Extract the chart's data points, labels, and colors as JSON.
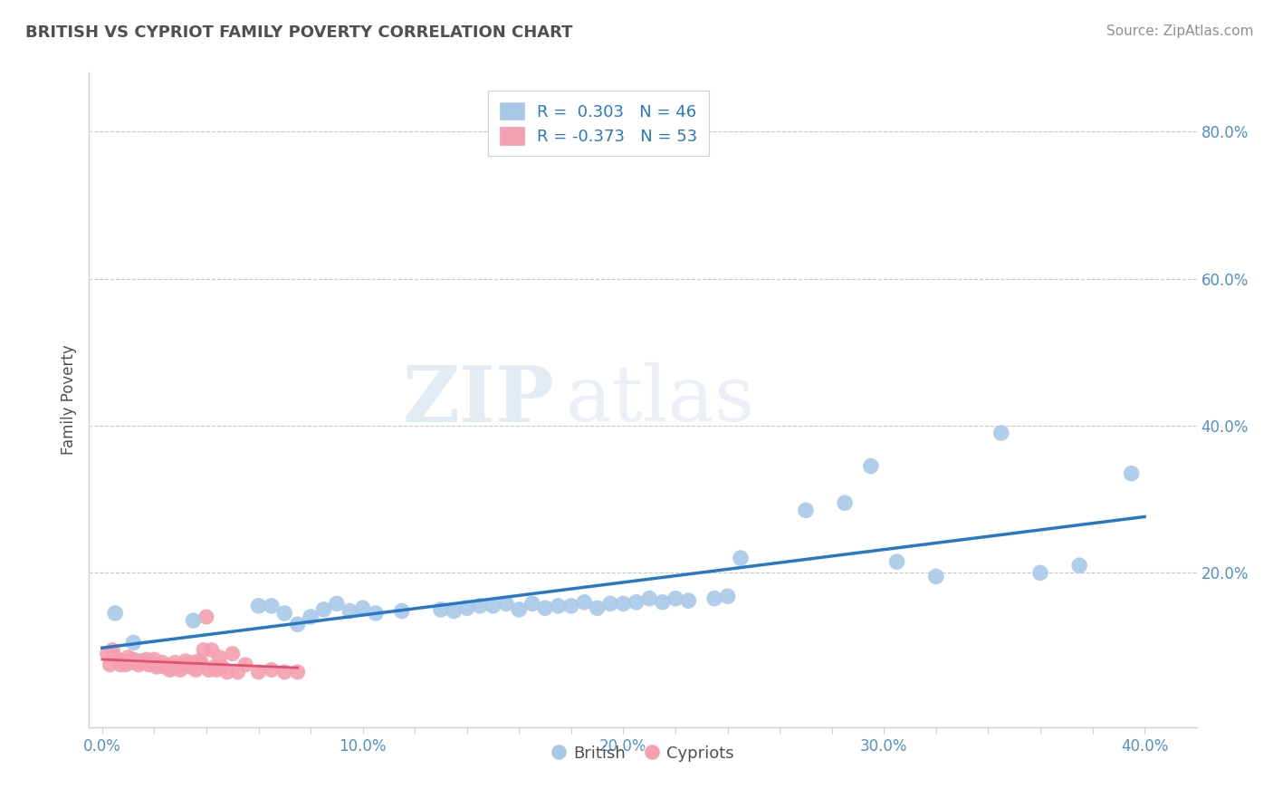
{
  "title": "BRITISH VS CYPRIOT FAMILY POVERTY CORRELATION CHART",
  "source_text": "Source: ZipAtlas.com",
  "ylabel": "Family Poverty",
  "xlim": [
    -0.005,
    0.42
  ],
  "ylim": [
    -0.01,
    0.88
  ],
  "xtick_labels": [
    "0.0%",
    "",
    "",
    "",
    "",
    "10.0%",
    "",
    "",
    "",
    "",
    "20.0%",
    "",
    "",
    "",
    "",
    "30.0%",
    "",
    "",
    "",
    "",
    "40.0%"
  ],
  "xtick_vals": [
    0.0,
    0.02,
    0.04,
    0.06,
    0.08,
    0.1,
    0.12,
    0.14,
    0.16,
    0.18,
    0.2,
    0.22,
    0.24,
    0.26,
    0.28,
    0.3,
    0.32,
    0.34,
    0.36,
    0.38,
    0.4
  ],
  "ytick_labels": [
    "20.0%",
    "40.0%",
    "60.0%",
    "80.0%"
  ],
  "ytick_vals": [
    0.2,
    0.4,
    0.6,
    0.8
  ],
  "british_R": 0.303,
  "british_N": 46,
  "cypriot_R": -0.373,
  "cypriot_N": 53,
  "british_color": "#a8c8e8",
  "cypriot_color": "#f4a0b0",
  "british_line_color": "#2878c8",
  "cypriot_line_color": "#e05070",
  "legend_british_label": "British",
  "legend_cypriot_label": "Cypriots",
  "title_color": "#505050",
  "source_color": "#909090",
  "tick_color": "#5090c8",
  "background_color": "#ffffff",
  "grid_color": "#c8c8c8",
  "watermark": "ZIPatlas",
  "british_x": [
    0.005,
    0.012,
    0.035,
    0.06,
    0.065,
    0.07,
    0.075,
    0.08,
    0.085,
    0.09,
    0.095,
    0.1,
    0.105,
    0.115,
    0.13,
    0.135,
    0.14,
    0.145,
    0.15,
    0.155,
    0.16,
    0.165,
    0.17,
    0.175,
    0.18,
    0.185,
    0.19,
    0.195,
    0.2,
    0.205,
    0.21,
    0.215,
    0.22,
    0.225,
    0.235,
    0.24,
    0.245,
    0.27,
    0.285,
    0.295,
    0.305,
    0.32,
    0.345,
    0.36,
    0.375,
    0.395
  ],
  "british_y": [
    0.145,
    0.105,
    0.135,
    0.155,
    0.155,
    0.145,
    0.13,
    0.14,
    0.15,
    0.158,
    0.148,
    0.152,
    0.145,
    0.148,
    0.15,
    0.148,
    0.152,
    0.155,
    0.155,
    0.158,
    0.15,
    0.158,
    0.152,
    0.155,
    0.155,
    0.16,
    0.152,
    0.158,
    0.158,
    0.16,
    0.165,
    0.16,
    0.165,
    0.162,
    0.165,
    0.168,
    0.22,
    0.285,
    0.295,
    0.345,
    0.215,
    0.195,
    0.39,
    0.2,
    0.21,
    0.335
  ],
  "cypriot_x": [
    0.002,
    0.003,
    0.004,
    0.005,
    0.006,
    0.007,
    0.008,
    0.009,
    0.01,
    0.011,
    0.012,
    0.013,
    0.014,
    0.015,
    0.016,
    0.017,
    0.018,
    0.019,
    0.02,
    0.021,
    0.022,
    0.023,
    0.024,
    0.025,
    0.026,
    0.027,
    0.028,
    0.029,
    0.03,
    0.031,
    0.032,
    0.033,
    0.034,
    0.035,
    0.036,
    0.037,
    0.038,
    0.039,
    0.04,
    0.041,
    0.042,
    0.043,
    0.044,
    0.045,
    0.046,
    0.048,
    0.05,
    0.052,
    0.055,
    0.06,
    0.065,
    0.07,
    0.075
  ],
  "cypriot_y": [
    0.09,
    0.075,
    0.095,
    0.085,
    0.08,
    0.075,
    0.08,
    0.075,
    0.085,
    0.078,
    0.082,
    0.08,
    0.075,
    0.08,
    0.078,
    0.082,
    0.075,
    0.078,
    0.082,
    0.072,
    0.075,
    0.078,
    0.072,
    0.075,
    0.068,
    0.072,
    0.078,
    0.072,
    0.068,
    0.075,
    0.08,
    0.075,
    0.072,
    0.078,
    0.068,
    0.08,
    0.078,
    0.095,
    0.14,
    0.068,
    0.095,
    0.072,
    0.068,
    0.085,
    0.072,
    0.065,
    0.09,
    0.065,
    0.075,
    0.065,
    0.068,
    0.065,
    0.065
  ]
}
